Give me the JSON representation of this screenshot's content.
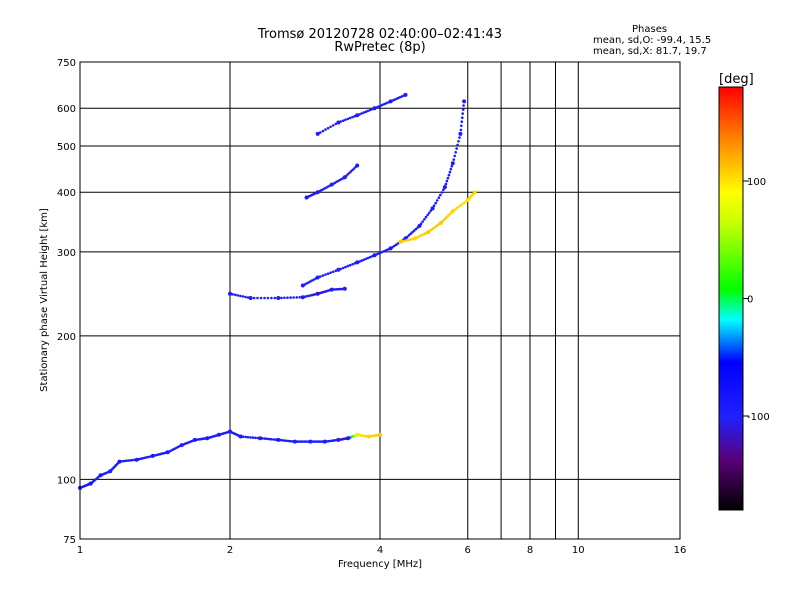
{
  "header": {
    "title_line1": "Tromsø 20120728 02:40:00–02:41:43",
    "title_line2": "RwPretec (8p)"
  },
  "phases": {
    "label": "Phases",
    "o_line": "mean, sd,O: -99.4, 15.5",
    "x_line": "mean, sd,X: 81.7, 19.7"
  },
  "colorbar": {
    "unit": "[deg]",
    "ticks": [
      "100",
      "0",
      "-100"
    ],
    "tick_values": [
      100,
      0,
      -100
    ],
    "range": [
      -180,
      180
    ]
  },
  "chart_data": {
    "type": "scatter",
    "title": "Tromsø 20120728 02:40:00–02:41:43",
    "subtitle": "RwPretec (8p)",
    "xlabel": "Frequency [MHz]",
    "ylabel": "Stationary phase Virtual Height [km]",
    "x_scale": "log",
    "y_scale": "log",
    "xlim": [
      1,
      16
    ],
    "ylim": [
      75,
      750
    ],
    "x_ticks": [
      1,
      2,
      4,
      6,
      8,
      10,
      16
    ],
    "x_tick_labels": [
      "1",
      "2",
      "4",
      "6",
      "8",
      "10",
      "16"
    ],
    "y_ticks": [
      75,
      100,
      200,
      300,
      400,
      500,
      600,
      750
    ],
    "y_tick_labels": [
      "75",
      "100",
      "200",
      "300",
      "400",
      "500",
      "600",
      "750"
    ],
    "grid": true,
    "color_by": "phase [deg]",
    "series": [
      {
        "points": [
          [
            1.0,
            96,
            -100
          ],
          [
            1.05,
            98,
            -95
          ],
          [
            1.1,
            102,
            -100
          ],
          [
            1.15,
            104,
            -105
          ],
          [
            1.2,
            109,
            -98
          ],
          [
            1.3,
            110,
            -100
          ],
          [
            1.4,
            112,
            -100
          ],
          [
            1.5,
            114,
            -100
          ],
          [
            1.6,
            118,
            -102
          ],
          [
            1.7,
            121,
            -100
          ],
          [
            1.8,
            122,
            -98
          ],
          [
            1.9,
            124,
            -100
          ],
          [
            2.0,
            126,
            -100
          ],
          [
            2.1,
            123,
            -100
          ],
          [
            2.3,
            122,
            -100
          ],
          [
            2.5,
            121,
            -100
          ],
          [
            2.7,
            120,
            -102
          ],
          [
            2.9,
            120,
            -105
          ],
          [
            3.1,
            120,
            -100
          ],
          [
            3.3,
            121,
            -110
          ],
          [
            3.45,
            122,
            -115
          ],
          [
            3.6,
            124,
            100
          ],
          [
            3.8,
            123,
            105
          ],
          [
            4.0,
            124,
            110
          ]
        ]
      },
      {
        "points": [
          [
            2.0,
            245,
            -100
          ],
          [
            2.2,
            240,
            -100
          ],
          [
            2.5,
            240,
            -100
          ],
          [
            2.8,
            241,
            -102
          ],
          [
            3.0,
            245,
            -115
          ],
          [
            3.2,
            250,
            -105
          ],
          [
            3.4,
            251,
            -110
          ]
        ]
      },
      {
        "points": [
          [
            2.8,
            255,
            -100
          ],
          [
            3.0,
            265,
            -100
          ],
          [
            3.3,
            275,
            -105
          ],
          [
            3.6,
            285,
            -100
          ],
          [
            3.9,
            295,
            -100
          ],
          [
            4.2,
            305,
            -100
          ],
          [
            4.5,
            320,
            -100
          ],
          [
            4.8,
            340,
            -100
          ],
          [
            5.1,
            370,
            -100
          ],
          [
            5.4,
            410,
            -100
          ],
          [
            5.6,
            460,
            -100
          ],
          [
            5.8,
            530,
            -100
          ],
          [
            5.9,
            620,
            -100
          ]
        ]
      },
      {
        "points": [
          [
            4.4,
            315,
            110
          ],
          [
            4.7,
            320,
            105
          ],
          [
            5.0,
            330,
            108
          ],
          [
            5.3,
            345,
            110
          ],
          [
            5.6,
            365,
            105
          ],
          [
            6.0,
            385,
            100
          ],
          [
            6.2,
            400,
            105
          ]
        ]
      },
      {
        "points": [
          [
            2.85,
            390,
            -100
          ],
          [
            3.0,
            400,
            -100
          ],
          [
            3.2,
            415,
            -105
          ],
          [
            3.4,
            430,
            -110
          ],
          [
            3.6,
            455,
            -100
          ]
        ]
      },
      {
        "points": [
          [
            3.0,
            530,
            -100
          ],
          [
            3.3,
            560,
            -105
          ],
          [
            3.6,
            580,
            -100
          ],
          [
            3.9,
            600,
            -100
          ],
          [
            4.2,
            620,
            -100
          ],
          [
            4.5,
            640,
            -100
          ]
        ]
      }
    ]
  }
}
